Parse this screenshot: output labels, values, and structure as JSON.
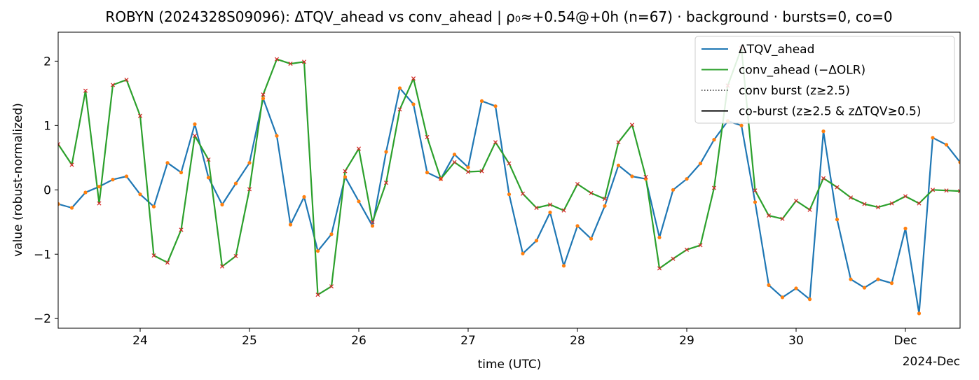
{
  "chart_data": {
    "type": "line",
    "title": "ROBYN (2024328S09096): ΔTQV_ahead vs conv_ahead | ρ₀≈+0.54@+0h (n=67) · background · bursts=0, co=0",
    "xlabel": "time (UTC)",
    "ylabel": "value (robust-normalized)",
    "x_start": "2024-11-23T06:00Z",
    "x_end": "2024-12-01T12:00Z",
    "x_step_hours": 3,
    "x_tick_labels": [
      "24",
      "25",
      "26",
      "27",
      "28",
      "29",
      "30",
      "Dec"
    ],
    "x_tick_positions": [
      "2024-11-24",
      "2024-11-25",
      "2024-11-26",
      "2024-11-27",
      "2024-11-28",
      "2024-11-29",
      "2024-11-30",
      "2024-12-01"
    ],
    "x_offset_label": "2024-Dec",
    "xlim": [
      "2024-11-23T06:00Z",
      "2024-12-01T12:00Z"
    ],
    "ylim": [
      -2.15,
      2.45
    ],
    "y_ticks": [
      -2,
      -1,
      0,
      1,
      2
    ],
    "y_tick_labels": [
      "−2",
      "−1",
      "0",
      "1",
      "2"
    ],
    "grid": false,
    "legend_position": "top-right",
    "series": [
      {
        "name": "ΔTQV_ahead",
        "color": "#1f77b4",
        "marker_color": "#ff7f0e",
        "values": [
          -0.22,
          -0.28,
          -0.04,
          0.05,
          0.16,
          0.21,
          -0.07,
          -0.26,
          0.42,
          0.27,
          1.02,
          0.19,
          -0.23,
          0.1,
          0.42,
          1.42,
          0.84,
          -0.54,
          -0.11,
          -0.95,
          -0.69,
          0.2,
          -0.18,
          -0.56,
          0.59,
          1.58,
          1.33,
          0.27,
          0.17,
          0.55,
          0.35,
          1.38,
          1.3,
          -0.07,
          -0.99,
          -0.79,
          -0.35,
          -1.18,
          -0.56,
          -0.76,
          -0.25,
          0.38,
          0.21,
          0.17,
          -0.74,
          0.0,
          0.17,
          0.41,
          0.78,
          1.07,
          1.0,
          -0.19,
          -1.48,
          -1.67,
          -1.53,
          -1.7,
          0.91,
          -0.46,
          -1.39,
          -1.52,
          -1.39,
          -1.45,
          -0.6,
          -1.92,
          0.81,
          0.7,
          0.43
        ]
      },
      {
        "name": "conv_ahead (−ΔOLR)",
        "color": "#2ca02c",
        "marker_color": "#d62728",
        "values": [
          0.71,
          0.39,
          1.54,
          -0.21,
          1.63,
          1.71,
          1.15,
          -1.02,
          -1.13,
          -0.62,
          0.84,
          0.47,
          -1.19,
          -1.03,
          0.01,
          1.48,
          2.03,
          1.96,
          1.99,
          -1.63,
          -1.5,
          0.29,
          0.64,
          -0.5,
          0.11,
          1.25,
          1.73,
          0.82,
          0.17,
          0.43,
          0.28,
          0.29,
          0.74,
          0.41,
          -0.06,
          -0.28,
          -0.23,
          -0.32,
          0.09,
          -0.05,
          -0.14,
          0.74,
          1.01,
          0.2,
          -1.22,
          -1.07,
          -0.93,
          -0.86,
          0.03,
          1.62,
          2.2,
          -0.01,
          -0.4,
          -0.45,
          -0.17,
          -0.31,
          0.18,
          0.04,
          -0.12,
          -0.22,
          -0.27,
          -0.21,
          -0.1,
          -0.21,
          0.0,
          -0.01,
          -0.02
        ]
      }
    ],
    "legend": [
      {
        "label": "ΔTQV_ahead",
        "style": "solid",
        "color": "#1f77b4"
      },
      {
        "label": "conv_ahead (−ΔOLR)",
        "style": "solid",
        "color": "#2ca02c"
      },
      {
        "label": "conv burst (z≥2.5)",
        "style": "dotted",
        "color": "#000000"
      },
      {
        "label": "co-burst (z≥2.5 & zΔTQV≥0.5)",
        "style": "solid",
        "color": "#000000"
      }
    ]
  }
}
